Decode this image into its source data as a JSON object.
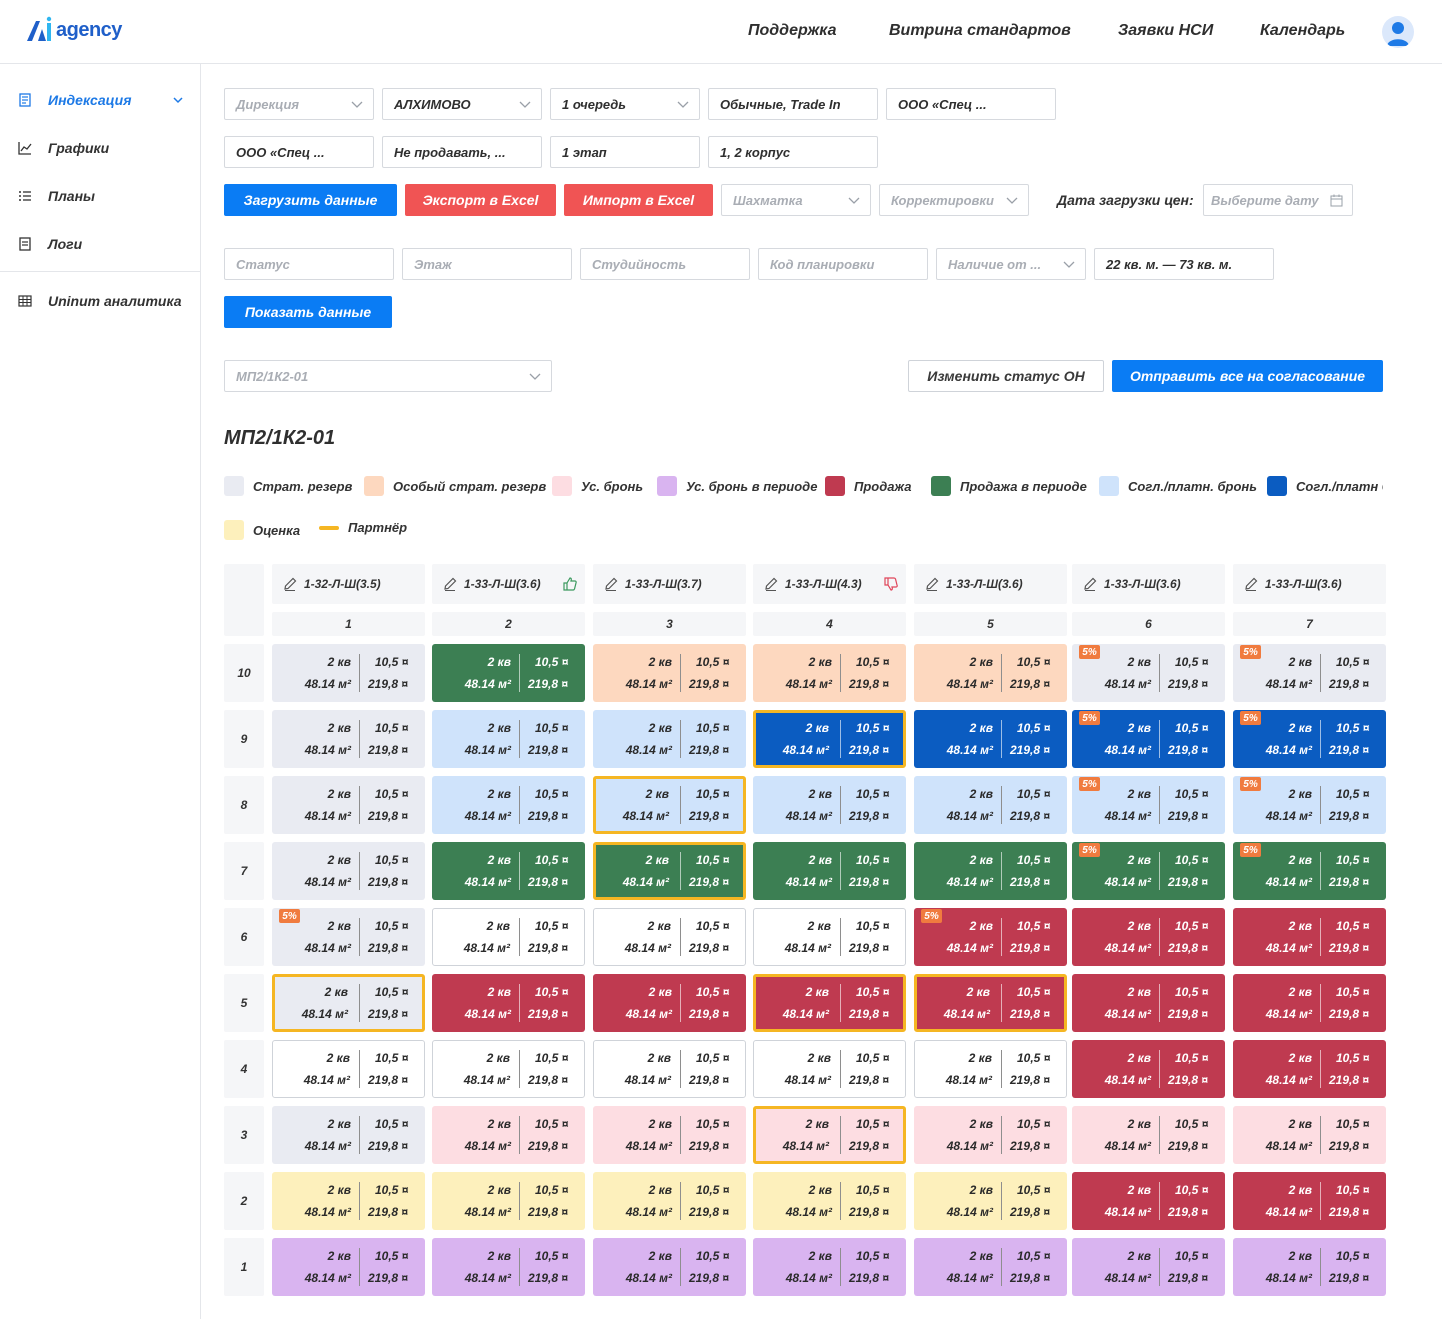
{
  "header": {
    "logo_text": "agency",
    "nav": [
      "Поддержка",
      "Витрина стандартов",
      "Заявки НСИ",
      "Календарь"
    ]
  },
  "sidebar": {
    "items": [
      {
        "label": "Индексация",
        "icon": "document-icon",
        "active": true
      },
      {
        "label": "Графики",
        "icon": "chart-icon",
        "active": false
      },
      {
        "label": "Планы",
        "icon": "list-icon",
        "active": false
      },
      {
        "label": "Логи",
        "icon": "log-icon",
        "active": false
      },
      {
        "label": "Uninum аналитика",
        "icon": "table-icon",
        "active": false
      }
    ]
  },
  "filters": {
    "direction_placeholder": "Дирекция",
    "project": "АЛХИМОВО",
    "queue": "1 очередь",
    "sale_type": "Обычные, Trade In",
    "company1": "ООО «Спец ...",
    "company2": "ООО «Спец ...",
    "sale_status": "Не продавать, ...",
    "stage": "1 этап",
    "building": "1, 2 корпус",
    "chessboard_placeholder": "Шахматка",
    "corrections_placeholder": "Корректировки",
    "price_date_label": "Дата загрузки цен:",
    "price_date_placeholder": "Выберите дату",
    "status_placeholder": "Статус",
    "floor_placeholder": "Этаж",
    "studio_placeholder": "Студийность",
    "layout_code_placeholder": "Код планировки",
    "availability_placeholder": "Наличие от ...",
    "area_range": "22 кв. м. — 73 кв. м.",
    "section_select": "МП2/1К2-01"
  },
  "buttons": {
    "load_data": "Загрузить данные",
    "export_excel": "Экспорт в Excel",
    "import_excel": "Импорт в Excel",
    "show_data": "Показать данные",
    "change_status": "Изменить статус ОН",
    "send_all": "Отправить все на согласование"
  },
  "section_title": "МП2/1К2-01",
  "legend": [
    {
      "label": "Страт. резерв",
      "color": "#e9ebf2"
    },
    {
      "label": "Особый страт. резерв",
      "color": "#fdd8bf"
    },
    {
      "label": "Ус. бронь",
      "color": "#fddde2"
    },
    {
      "label": "Ус. бронь в периоде",
      "color": "#d9b4f0"
    },
    {
      "label": "Продажа",
      "color": "#bf3a50"
    },
    {
      "label": "Продажа в периоде",
      "color": "#3c7f53"
    },
    {
      "label": "Согл./платн. бронь",
      "color": "#cfe3fb"
    },
    {
      "label": "Согл./платн бронь",
      "color": "#0b5cc1"
    },
    {
      "label": "Оценка",
      "color": "#fdf0bc"
    },
    {
      "label": "Партнёр",
      "color": "#f5b623"
    }
  ],
  "grid": {
    "columns": [
      {
        "code": "1-32-Л-Ш(3.5)",
        "num": "1",
        "thumb": "none"
      },
      {
        "code": "1-33-Л-Ш(3.6)",
        "num": "2",
        "thumb": "up"
      },
      {
        "code": "1-33-Л-Ш(3.7)",
        "num": "3",
        "thumb": "none"
      },
      {
        "code": "1-33-Л-Ш(4.3)",
        "num": "4",
        "thumb": "down"
      },
      {
        "code": "1-33-Л-Ш(3.6)",
        "num": "5",
        "thumb": "none"
      },
      {
        "code": "1-33-Л-Ш(3.6)",
        "num": "6",
        "thumb": "none"
      },
      {
        "code": "1-33-Л-Ш(3.6)",
        "num": "7",
        "thumb": "none"
      }
    ],
    "floors": [
      "10",
      "9",
      "8",
      "7",
      "6",
      "5",
      "4",
      "3",
      "2",
      "1"
    ],
    "cell_text": {
      "rooms": "2 кв",
      "area": "48.14 м²",
      "price_m2": "10,5 ¤",
      "price_total": "219,8 ¤"
    },
    "discount_badge": "5%",
    "statuses": [
      [
        "strat",
        "saleper",
        "spec",
        "spec",
        "spec",
        "strat",
        "strat"
      ],
      [
        "strat",
        "sogl",
        "sogl",
        "sogldark",
        "sogldark",
        "sogldark",
        "sogldark"
      ],
      [
        "strat",
        "sogl",
        "sogl",
        "sogl",
        "sogl",
        "sogl",
        "sogl"
      ],
      [
        "strat",
        "saleper",
        "saleper",
        "saleper",
        "saleper",
        "saleper",
        "saleper"
      ],
      [
        "strat",
        "free",
        "free",
        "free",
        "sale",
        "sale",
        "sale"
      ],
      [
        "strat",
        "sale",
        "sale",
        "sale",
        "sale",
        "sale",
        "sale"
      ],
      [
        "free",
        "free",
        "free",
        "free",
        "free",
        "sale",
        "sale"
      ],
      [
        "strat",
        "bron",
        "bron",
        "bron",
        "bron",
        "bron",
        "bron"
      ],
      [
        "ocenka",
        "ocenka",
        "ocenka",
        "ocenka",
        "ocenka",
        "sale",
        "sale"
      ],
      [
        "period",
        "period",
        "period",
        "period",
        "period",
        "period",
        "period"
      ]
    ],
    "partner": [
      [
        0,
        0,
        0,
        0,
        0,
        0,
        0
      ],
      [
        0,
        0,
        0,
        1,
        0,
        0,
        0
      ],
      [
        0,
        0,
        1,
        0,
        0,
        0,
        0
      ],
      [
        0,
        0,
        1,
        0,
        0,
        0,
        0
      ],
      [
        0,
        0,
        0,
        0,
        0,
        0,
        0
      ],
      [
        1,
        0,
        0,
        1,
        1,
        0,
        0
      ],
      [
        0,
        0,
        0,
        0,
        0,
        0,
        0
      ],
      [
        0,
        0,
        0,
        1,
        0,
        0,
        0
      ],
      [
        0,
        0,
        0,
        0,
        0,
        0,
        0
      ],
      [
        0,
        0,
        0,
        0,
        0,
        0,
        0
      ]
    ],
    "discount": [
      [
        0,
        0,
        0,
        0,
        0,
        1,
        1
      ],
      [
        0,
        0,
        0,
        0,
        0,
        1,
        1
      ],
      [
        0,
        0,
        0,
        0,
        0,
        1,
        1
      ],
      [
        0,
        0,
        0,
        0,
        0,
        1,
        1
      ],
      [
        1,
        0,
        0,
        0,
        1,
        0,
        0
      ],
      [
        0,
        0,
        0,
        0,
        0,
        0,
        0
      ],
      [
        0,
        0,
        0,
        0,
        0,
        0,
        0
      ],
      [
        0,
        0,
        0,
        0,
        0,
        0,
        0
      ],
      [
        0,
        0,
        0,
        0,
        0,
        0,
        0
      ],
      [
        0,
        0,
        0,
        0,
        0,
        0,
        0
      ]
    ]
  }
}
